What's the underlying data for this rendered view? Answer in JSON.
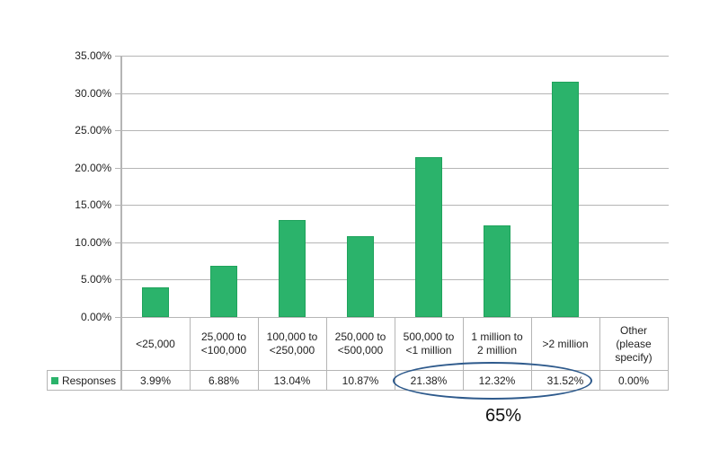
{
  "chart_data": {
    "type": "bar",
    "title": "",
    "xlabel": "",
    "ylabel": "",
    "categories": [
      "<25,000",
      "25,000 to <100,000",
      "100,000 to <250,000",
      "250,000 to <500,000",
      "500,000 to <1 million",
      "1 million to 2 million",
      ">2 million",
      "Other (please specify)"
    ],
    "series": [
      {
        "name": "Responses",
        "values": [
          3.99,
          6.88,
          13.04,
          10.87,
          21.38,
          12.32,
          31.52,
          0.0
        ],
        "color": "#2bb36b"
      }
    ],
    "ylim": [
      0,
      35
    ],
    "yticks": [
      "0.00%",
      "5.00%",
      "10.00%",
      "15.00%",
      "20.00%",
      "25.00%",
      "30.00%",
      "35.00%"
    ],
    "grid": true,
    "legend_position": "data-table",
    "data_table": true,
    "annotations": [
      {
        "type": "ellipse",
        "covers": [
          "500,000 to <1 million",
          "1 million to 2 million",
          ">2 million"
        ],
        "color": "#2e5a8c"
      },
      {
        "type": "text",
        "text": "65%"
      }
    ]
  },
  "axis": {
    "yticks": [
      "35.00%",
      "30.00%",
      "25.00%",
      "20.00%",
      "15.00%",
      "10.00%",
      "5.00%",
      "0.00%"
    ]
  },
  "table": {
    "categories": [
      [
        "<25,000"
      ],
      [
        "25,000 to",
        "<100,000"
      ],
      [
        "100,000 to",
        "<250,000"
      ],
      [
        "250,000 to",
        "<500,000"
      ],
      [
        "500,000 to",
        "<1 million"
      ],
      [
        "1 million to",
        "2 million"
      ],
      [
        ">2 million"
      ],
      [
        "Other",
        "(please",
        "specify)"
      ]
    ],
    "legend_label": "Responses",
    "values": [
      "3.99%",
      "6.88%",
      "13.04%",
      "10.87%",
      "21.38%",
      "12.32%",
      "31.52%",
      "0.00%"
    ]
  },
  "annotation": {
    "text": "65%"
  }
}
